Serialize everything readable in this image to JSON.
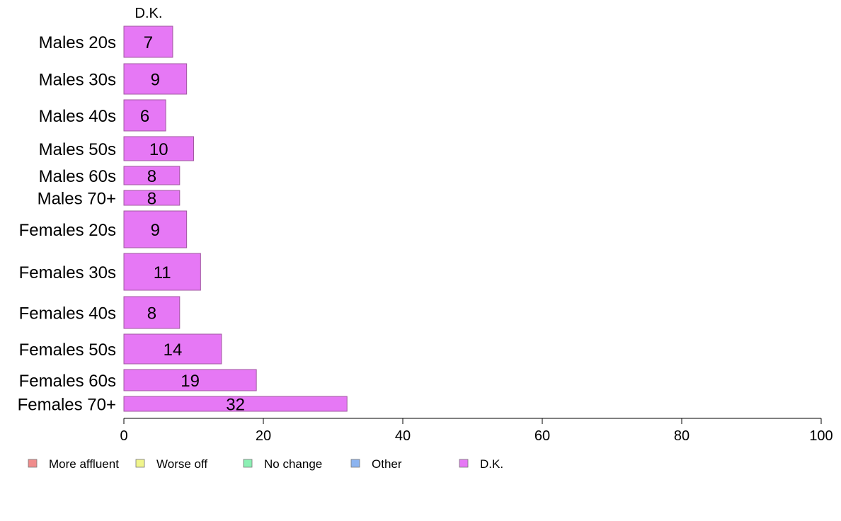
{
  "chart_data": {
    "type": "bar",
    "orientation": "horizontal",
    "column_header": "D.K.",
    "categories": [
      "Males 20s",
      "Males 30s",
      "Males 40s",
      "Males 50s",
      "Males 60s",
      "Males 70+",
      "Females 20s",
      "Females 30s",
      "Females 40s",
      "Females 50s",
      "Females 60s",
      "Females 70+"
    ],
    "values": [
      7,
      9,
      6,
      10,
      8,
      8,
      9,
      11,
      8,
      14,
      19,
      32
    ],
    "value_labels": [
      "7",
      "9",
      "6",
      "10",
      "8",
      "8",
      "9",
      "11",
      "8",
      "14",
      "19",
      "32"
    ],
    "xlim": [
      0,
      100
    ],
    "x_ticks": [
      "0",
      "20",
      "40",
      "60",
      "80",
      "100"
    ],
    "grid": false,
    "legend_position": "bottom",
    "legend": [
      {
        "label": "More affluent",
        "color": "#f08c8c"
      },
      {
        "label": "Worse off",
        "color": "#f0f58c"
      },
      {
        "label": "No change",
        "color": "#8cf0b4"
      },
      {
        "label": "Other",
        "color": "#8cb4f0"
      },
      {
        "label": "D.K.",
        "color": "#e678f5"
      }
    ],
    "bar_color": "#e678f5",
    "bar_border_color": "#a05aa0"
  }
}
